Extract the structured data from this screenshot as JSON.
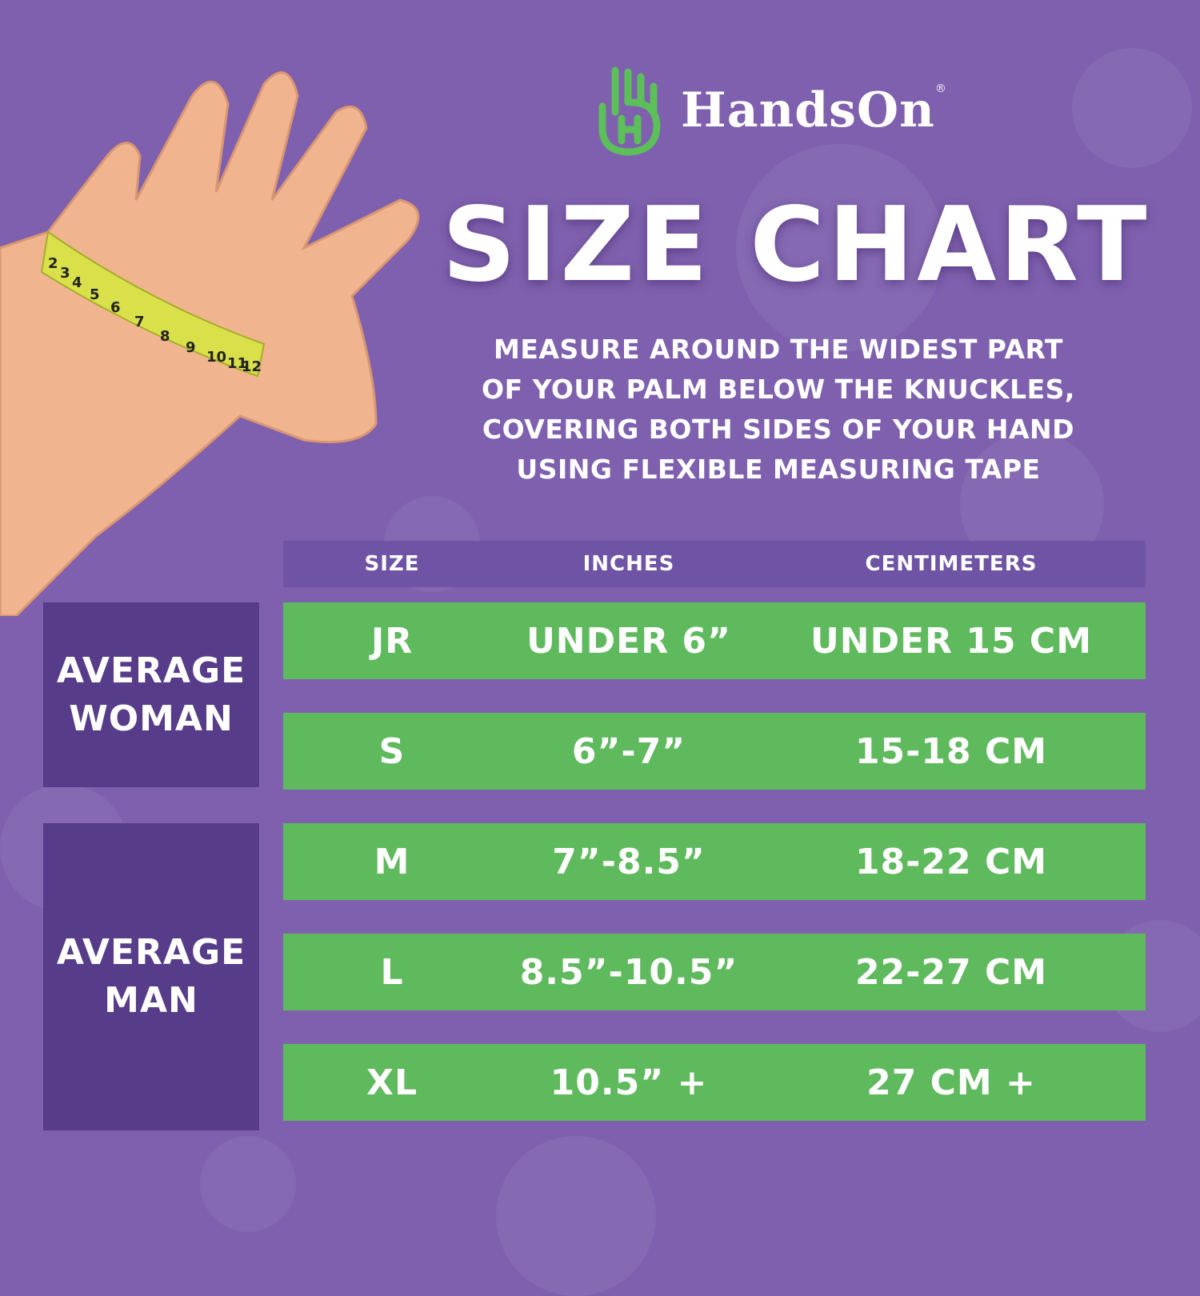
{
  "colors": {
    "background": "#7e60ae",
    "row_green": "#5fb95d",
    "group_purple": "#573c8a",
    "header_band": "#6f54a6",
    "logo_green": "#5cbf5a",
    "tape_yellow": "#d9e04a"
  },
  "logo": {
    "brand": "HandsOn",
    "registered": "®",
    "icon": "hand-logo-icon"
  },
  "title": "SIZE CHART",
  "instructions": [
    "MEASURE AROUND THE WIDEST PART",
    "OF YOUR PALM BELOW THE KNUCKLES,",
    "COVERING BOTH SIDES OF YOUR HAND",
    "USING FLEXIBLE MEASURING TAPE"
  ],
  "table": {
    "headers": [
      "SIZE",
      "INCHES",
      "CENTIMETERS"
    ],
    "rows": [
      {
        "size": "JR",
        "inches": "UNDER 6”",
        "cm": "UNDER 15 CM"
      },
      {
        "size": "S",
        "inches": "6”-7”",
        "cm": "15-18 CM"
      },
      {
        "size": "M",
        "inches": "7”-8.5”",
        "cm": "18-22 CM"
      },
      {
        "size": "L",
        "inches": "8.5”-10.5”",
        "cm": "22-27 CM"
      },
      {
        "size": "XL",
        "inches": "10.5” +",
        "cm": "27 CM +"
      }
    ],
    "groups": [
      {
        "line1": "AVERAGE",
        "line2": "WOMAN"
      },
      {
        "line1": "AVERAGE",
        "line2": "MAN"
      }
    ]
  },
  "tape_numbers": [
    "2",
    "3",
    "4",
    "5",
    "6",
    "7",
    "8",
    "9",
    "10",
    "11",
    "12"
  ]
}
